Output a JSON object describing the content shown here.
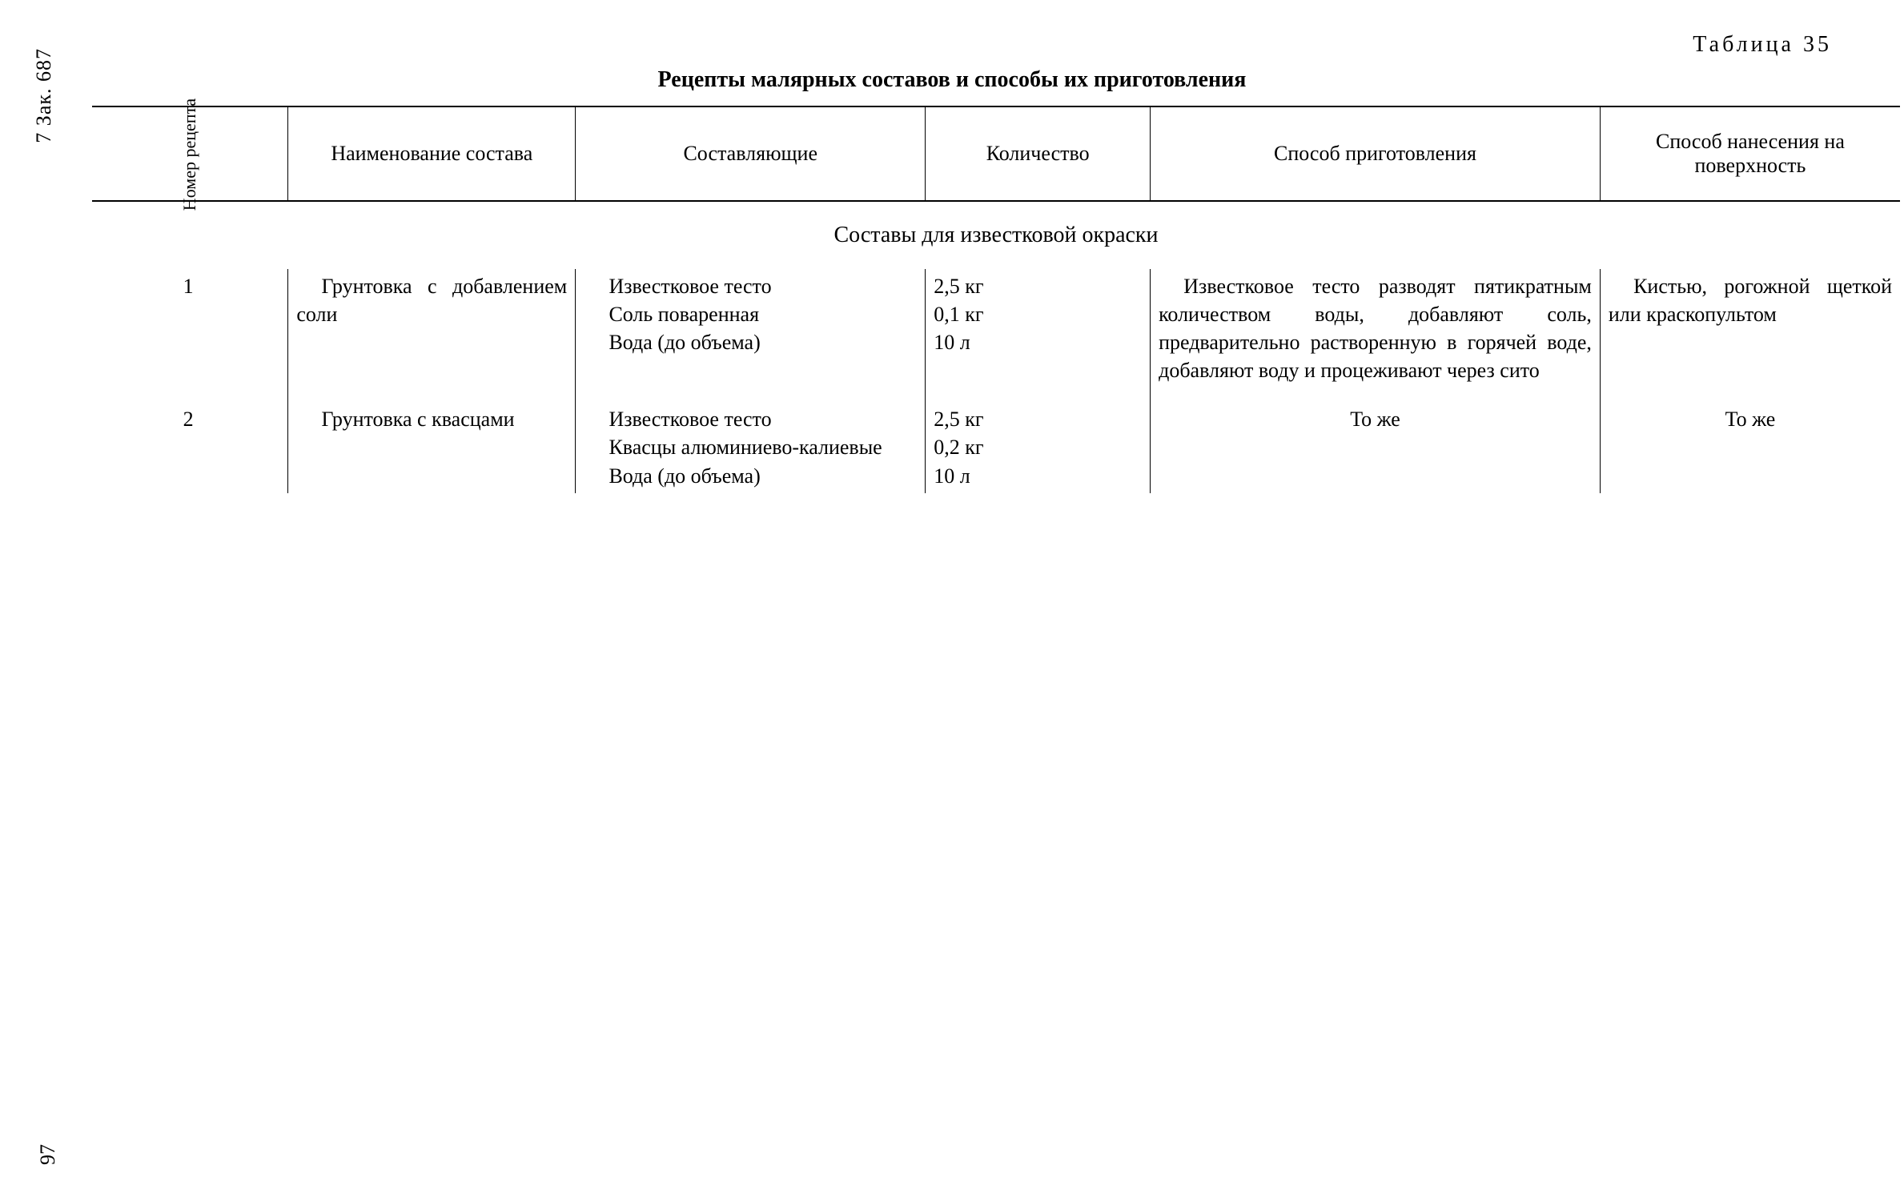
{
  "side_marker": "7  Зак. 687",
  "page_number": "97",
  "table_label": "Таблица 35",
  "table_title": "Рецепты малярных составов и способы их приготовления",
  "headers": {
    "num": "Номер рецепта",
    "name": "Наименование состава",
    "components": "Составляющие",
    "quantity": "Количество",
    "method": "Способ приготовления",
    "application": "Способ нанесения на поверхность"
  },
  "section_title": "Составы для известковой окраски",
  "rows": [
    {
      "num": "1",
      "name": "Грунтовка с добавлением соли",
      "components": [
        "Известковое тесто",
        "Соль поваренная",
        "Вода (до объема)"
      ],
      "quantities": [
        "2,5 кг",
        "0,1 кг",
        "10 л"
      ],
      "method": "Известковое тесто разводят пятикратным количеством воды, добавляют соль, предварительно растворенную в горячей воде, добавляют воду и процеживают через сито",
      "application": "Кистью, рогожной щеткой или краскопультом"
    },
    {
      "num": "2",
      "name": "Грунтовка с квасцами",
      "components": [
        "Известковое тесто",
        "Квасцы алюминиево-калиевые",
        "Вода (до объема)"
      ],
      "quantities": [
        "2,5 кг",
        "0,2 кг",
        "10 л"
      ],
      "method": "То же",
      "application": "То же"
    }
  ]
}
